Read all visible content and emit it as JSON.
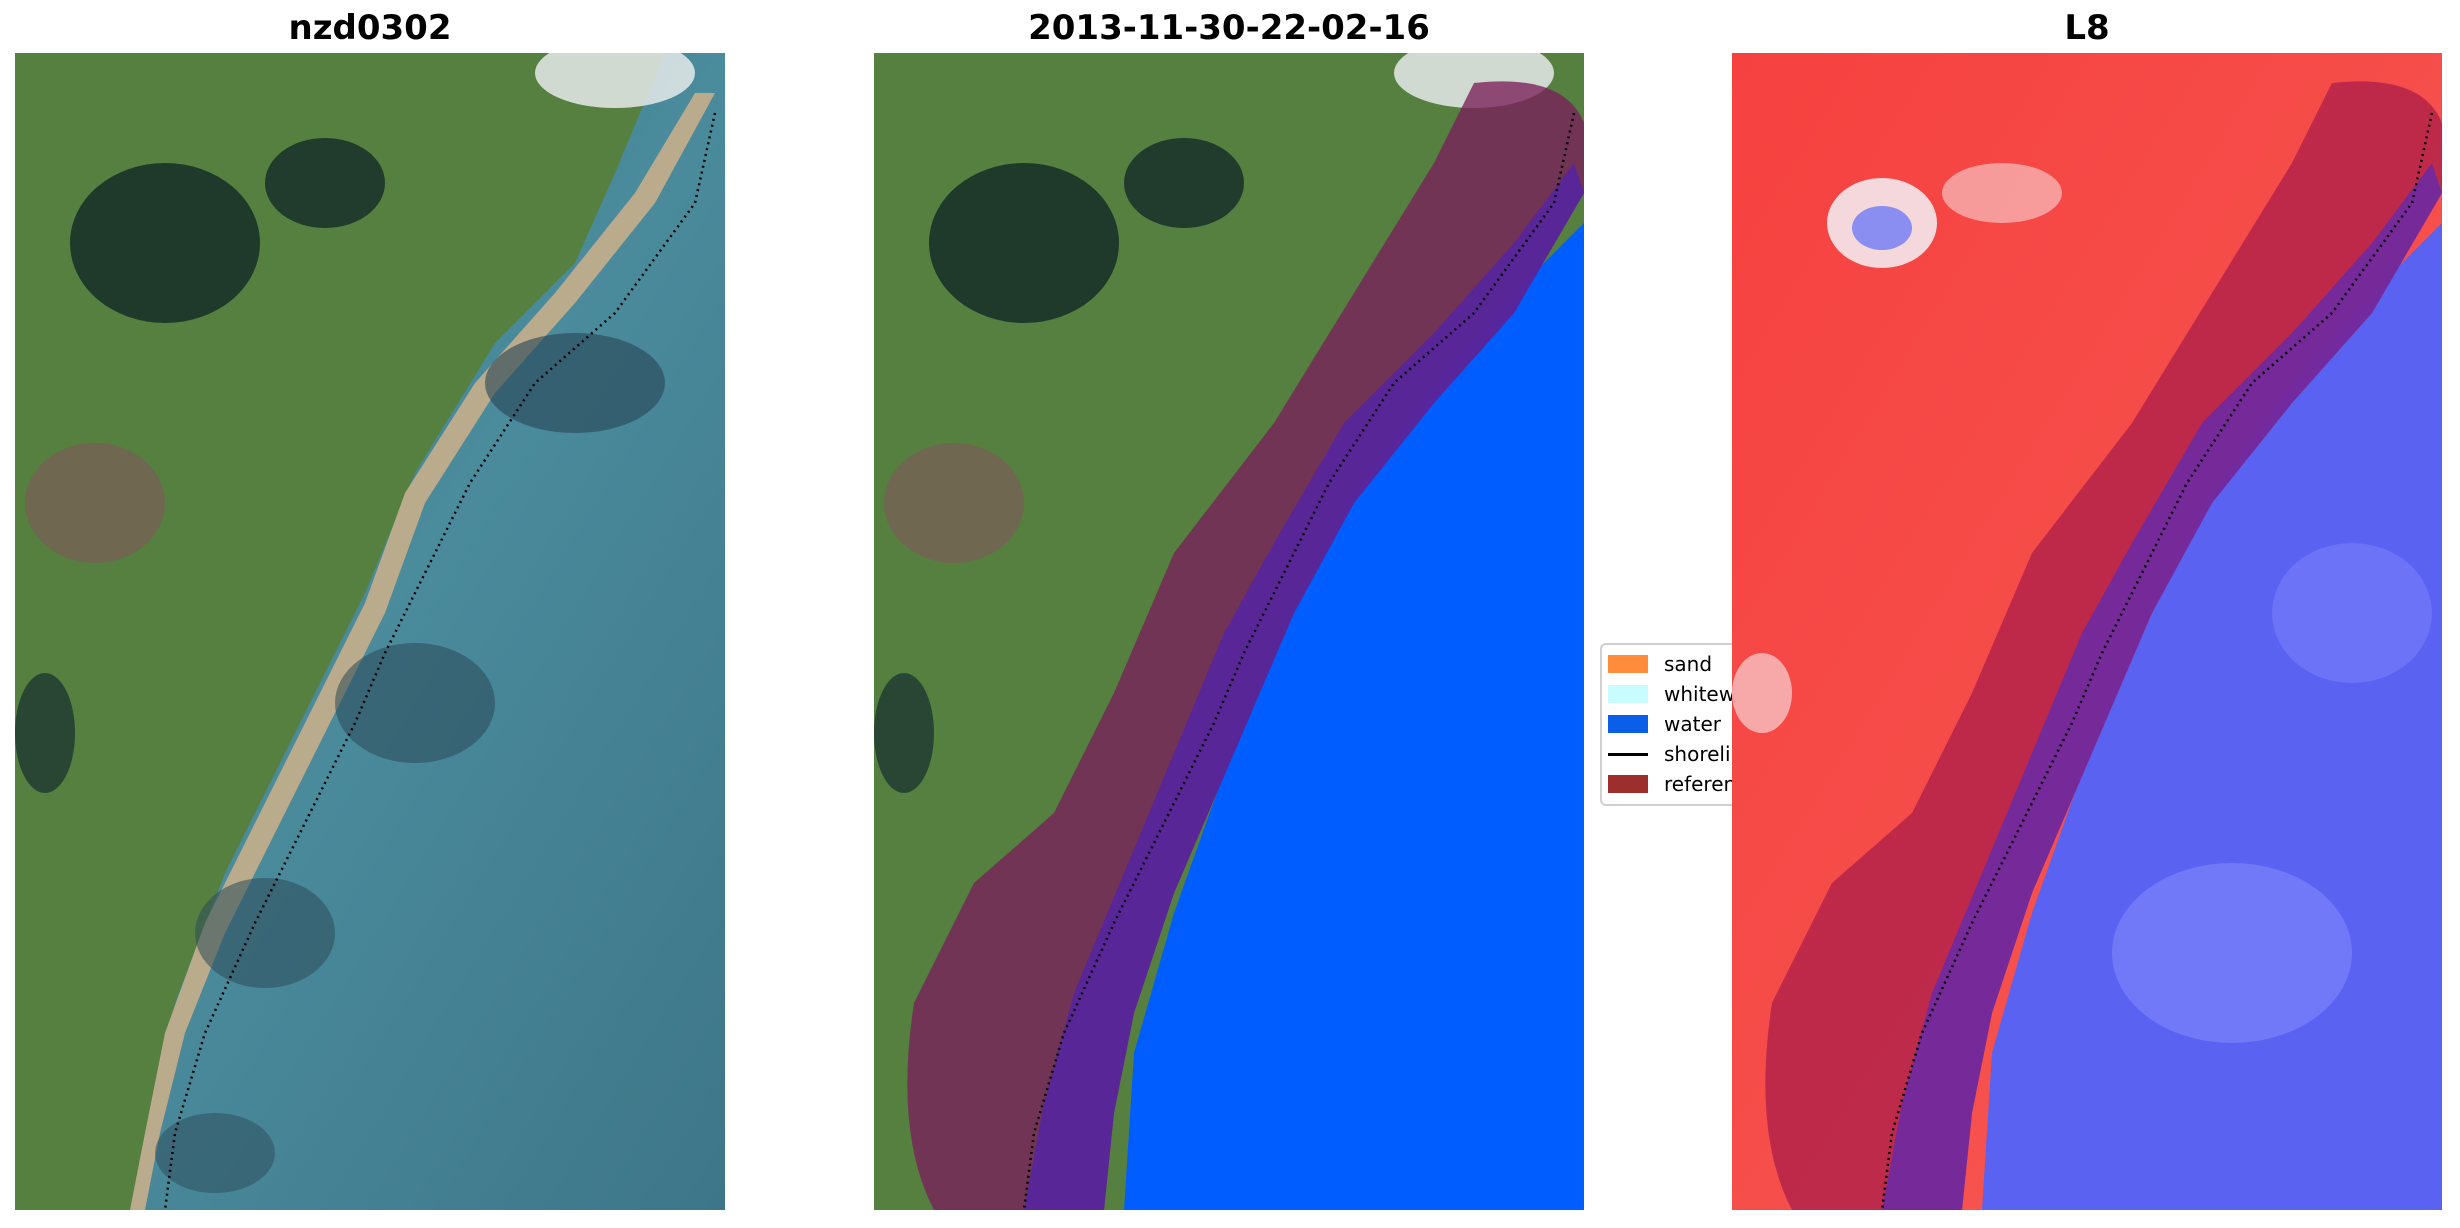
{
  "panels": [
    {
      "title": "nzd0302"
    },
    {
      "title": "2013-11-30-22-02-16"
    },
    {
      "title": "L8"
    }
  ],
  "legend": {
    "items": [
      {
        "label": "sand",
        "color": "#ff8c3a",
        "kind": "patch"
      },
      {
        "label": "whitewater",
        "color": "#c8fcff",
        "kind": "patch"
      },
      {
        "label": "water",
        "color": "#0a5ee8",
        "kind": "patch"
      },
      {
        "label": "shoreline",
        "color": "#000000",
        "kind": "line"
      },
      {
        "label": "reference shoreline buffer",
        "color": "#9c2e2e",
        "kind": "patch"
      }
    ]
  },
  "colors": {
    "land": "#5b8044",
    "ocean": "#3f7f8c",
    "water_class": "#005dff",
    "buffer": "#7a1f5a",
    "index_land": "#f5393a",
    "index_water": "#5558f0"
  }
}
